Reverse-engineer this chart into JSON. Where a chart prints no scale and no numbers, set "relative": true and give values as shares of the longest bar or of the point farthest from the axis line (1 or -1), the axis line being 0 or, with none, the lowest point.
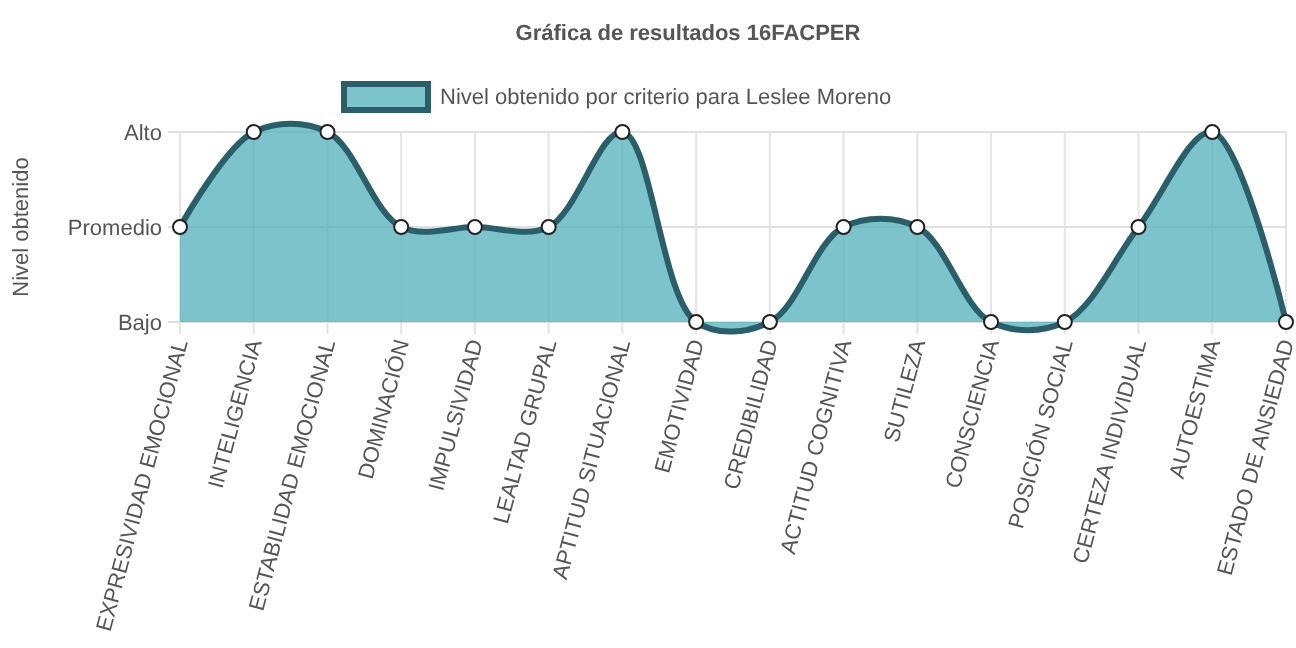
{
  "chart_data": {
    "type": "area",
    "title": "Gráfica de resultados 16FACPER",
    "ylabel": "Nivel obtenido",
    "categories": [
      "EXPRESIVIDAD EMOCIONAL",
      "INTELIGENCIA",
      "ESTABILIDAD EMOCIONAL",
      "DOMINACIÓN",
      "IMPULSIVIDAD",
      "LEALTAD GRUPAL",
      "APTITUD SITUACIONAL",
      "EMOTIVIDAD",
      "CREDIBILIDAD",
      "ACTITUD COGNITIVA",
      "SUTILEZA",
      "CONSCIENCIA",
      "POSICIÓN SOCIAL",
      "CERTEZA INDIVIDUAL",
      "AUTOESTIMA",
      "ESTADO DE ANSIEDAD"
    ],
    "series": [
      {
        "name": "Nivel obtenido por criterio para Leslee Moreno",
        "color": "#2a5f6a",
        "values": [
          0.5,
          1,
          1,
          0.5,
          0.5,
          0.5,
          1,
          0,
          0,
          0.5,
          0.5,
          0,
          0,
          0.5,
          1,
          0
        ]
      }
    ],
    "relative": true,
    "ref_lines": [
      {
        "axis": "y",
        "value": 0.5,
        "color": "#e0e0e0"
      }
    ],
    "y_categories": [
      "Alto",
      "Promedio",
      "Bajo"
    ],
    "grid": true,
    "legend": "top",
    "marker": "circle",
    "line_style": "solid"
  }
}
